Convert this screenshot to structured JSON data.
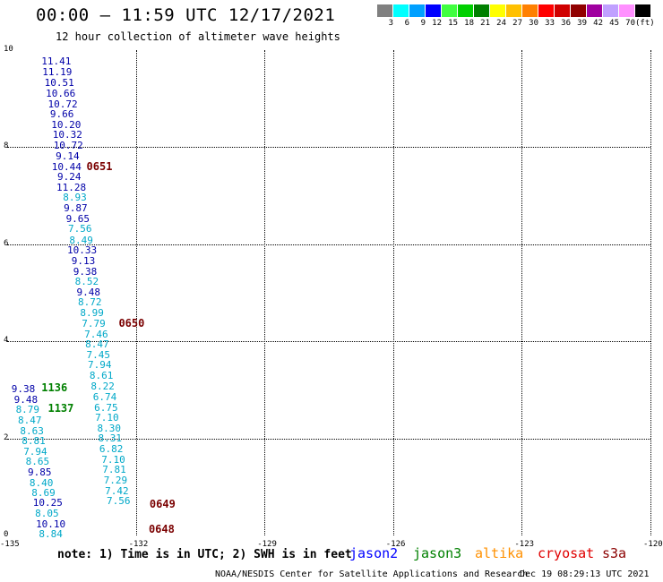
{
  "title": "00:00 – 11:59 UTC 12/17/2021",
  "subtitle": "12 hour collection of altimeter wave heights",
  "scale": {
    "labels": [
      "3",
      "6",
      "9",
      "12",
      "15",
      "18",
      "21",
      "24",
      "27",
      "30",
      "33",
      "36",
      "39",
      "42",
      "45",
      "70",
      "(ft)"
    ],
    "colors": [
      "#808080",
      "#00ffff",
      "#00a0ff",
      "#0000ff",
      "#40ff40",
      "#00d000",
      "#008000",
      "#ffff00",
      "#ffc000",
      "#ff8000",
      "#ff0000",
      "#d00000",
      "#900000",
      "#a000a0",
      "#c0a0ff",
      "#ff90ff",
      "#000000"
    ]
  },
  "axes": {
    "x_ticks": [
      "-135",
      "-132",
      "-129",
      "-126",
      "-123",
      "-120"
    ],
    "y_ticks": [
      "10",
      "8",
      "6",
      "4",
      "2",
      "0"
    ]
  },
  "observations": [
    {
      "v": "11.41",
      "lon": -134.2,
      "lat": 9.75,
      "c": "#0000a8"
    },
    {
      "v": "11.19",
      "lon": -134.18,
      "lat": 9.52,
      "c": "#0000a8"
    },
    {
      "v": "10.51",
      "lon": -134.13,
      "lat": 9.3,
      "c": "#0000a8"
    },
    {
      "v": "10.66",
      "lon": -134.1,
      "lat": 9.08,
      "c": "#0000a8"
    },
    {
      "v": "10.72",
      "lon": -134.05,
      "lat": 8.86,
      "c": "#0000a8"
    },
    {
      "v": "9.66",
      "lon": -134.0,
      "lat": 8.65,
      "c": "#0000a8"
    },
    {
      "v": "10.20",
      "lon": -133.97,
      "lat": 8.43,
      "c": "#0000a8"
    },
    {
      "v": "10.32",
      "lon": -133.94,
      "lat": 8.22,
      "c": "#0000a8"
    },
    {
      "v": "10.72",
      "lon": -133.92,
      "lat": 8.0,
      "c": "#0000a8"
    },
    {
      "v": "9.14",
      "lon": -133.87,
      "lat": 7.78,
      "c": "#0000a8"
    },
    {
      "v": "10.44",
      "lon": -133.96,
      "lat": 7.57,
      "c": "#0000a8"
    },
    {
      "v": "9.24",
      "lon": -133.83,
      "lat": 7.36,
      "c": "#0000a8"
    },
    {
      "v": "11.28",
      "lon": -133.85,
      "lat": 7.14,
      "c": "#0000a8"
    },
    {
      "v": "8.93",
      "lon": -133.7,
      "lat": 6.93,
      "c": "#00a8c8"
    },
    {
      "v": "9.87",
      "lon": -133.68,
      "lat": 6.71,
      "c": "#0000a8"
    },
    {
      "v": "9.65",
      "lon": -133.63,
      "lat": 6.5,
      "c": "#0000a8"
    },
    {
      "v": "7.56",
      "lon": -133.58,
      "lat": 6.29,
      "c": "#00a8c8"
    },
    {
      "v": "8.49",
      "lon": -133.55,
      "lat": 6.06,
      "c": "#00a8c8"
    },
    {
      "v": "10.33",
      "lon": -133.6,
      "lat": 5.85,
      "c": "#0000a8"
    },
    {
      "v": "9.13",
      "lon": -133.5,
      "lat": 5.63,
      "c": "#0000a8"
    },
    {
      "v": "9.38",
      "lon": -133.46,
      "lat": 5.41,
      "c": "#0000a8"
    },
    {
      "v": "8.52",
      "lon": -133.42,
      "lat": 5.2,
      "c": "#00a8c8"
    },
    {
      "v": "9.48",
      "lon": -133.38,
      "lat": 4.98,
      "c": "#0000a8"
    },
    {
      "v": "8.72",
      "lon": -133.35,
      "lat": 4.77,
      "c": "#00a8c8"
    },
    {
      "v": "8.99",
      "lon": -133.3,
      "lat": 4.55,
      "c": "#00a8c8"
    },
    {
      "v": "7.79",
      "lon": -133.26,
      "lat": 4.34,
      "c": "#00a8c8"
    },
    {
      "v": "7.46",
      "lon": -133.2,
      "lat": 4.12,
      "c": "#00a8c8"
    },
    {
      "v": "8.47",
      "lon": -133.18,
      "lat": 3.91,
      "c": "#00a8c8"
    },
    {
      "v": "7.45",
      "lon": -133.15,
      "lat": 3.69,
      "c": "#00a8c8"
    },
    {
      "v": "7.94",
      "lon": -133.12,
      "lat": 3.48,
      "c": "#00a8c8"
    },
    {
      "v": "8.61",
      "lon": -133.08,
      "lat": 3.26,
      "c": "#00a8c8"
    },
    {
      "v": "8.22",
      "lon": -133.05,
      "lat": 3.04,
      "c": "#00a8c8"
    },
    {
      "v": "6.74",
      "lon": -133.0,
      "lat": 2.83,
      "c": "#00a8c8"
    },
    {
      "v": "6.75",
      "lon": -132.97,
      "lat": 2.61,
      "c": "#00a8c8"
    },
    {
      "v": "7.10",
      "lon": -132.95,
      "lat": 2.4,
      "c": "#00a8c8"
    },
    {
      "v": "8.30",
      "lon": -132.9,
      "lat": 2.18,
      "c": "#00a8c8"
    },
    {
      "v": "8.31",
      "lon": -132.88,
      "lat": 1.97,
      "c": "#00a8c8"
    },
    {
      "v": "6.82",
      "lon": -132.85,
      "lat": 1.75,
      "c": "#00a8c8"
    },
    {
      "v": "7.10",
      "lon": -132.8,
      "lat": 1.54,
      "c": "#00a8c8"
    },
    {
      "v": "7.81",
      "lon": -132.78,
      "lat": 1.32,
      "c": "#00a8c8"
    },
    {
      "v": "7.29",
      "lon": -132.75,
      "lat": 1.11,
      "c": "#00a8c8"
    },
    {
      "v": "7.42",
      "lon": -132.72,
      "lat": 0.89,
      "c": "#00a8c8"
    },
    {
      "v": "7.56",
      "lon": -132.68,
      "lat": 0.68,
      "c": "#00a8c8"
    },
    {
      "v": "9.38",
      "lon": -134.9,
      "lat": 2.98,
      "c": "#0000a8"
    },
    {
      "v": "9.48",
      "lon": -134.84,
      "lat": 2.77,
      "c": "#0000a8"
    },
    {
      "v": "8.79",
      "lon": -134.8,
      "lat": 2.56,
      "c": "#00a8c8"
    },
    {
      "v": "8.47",
      "lon": -134.75,
      "lat": 2.35,
      "c": "#00a8c8"
    },
    {
      "v": "8.63",
      "lon": -134.7,
      "lat": 2.13,
      "c": "#00a8c8"
    },
    {
      "v": "8.81",
      "lon": -134.66,
      "lat": 1.92,
      "c": "#00a8c8"
    },
    {
      "v": "7.94",
      "lon": -134.62,
      "lat": 1.7,
      "c": "#00a8c8"
    },
    {
      "v": "8.65",
      "lon": -134.57,
      "lat": 1.49,
      "c": "#00a8c8"
    },
    {
      "v": "9.85",
      "lon": -134.52,
      "lat": 1.28,
      "c": "#0000a8"
    },
    {
      "v": "8.40",
      "lon": -134.48,
      "lat": 1.06,
      "c": "#00a8c8"
    },
    {
      "v": "8.69",
      "lon": -134.43,
      "lat": 0.85,
      "c": "#00a8c8"
    },
    {
      "v": "10.25",
      "lon": -134.4,
      "lat": 0.64,
      "c": "#0000a8"
    },
    {
      "v": "8.05",
      "lon": -134.35,
      "lat": 0.43,
      "c": "#00a8c8"
    },
    {
      "v": "10.10",
      "lon": -134.33,
      "lat": 0.21,
      "c": "#0000a8"
    },
    {
      "v": "8.84",
      "lon": -134.26,
      "lat": 0.0,
      "c": "#00a8c8"
    }
  ],
  "passes": [
    {
      "label": "0651",
      "lon": -133.15,
      "lat": 7.57,
      "c": "#7a0000"
    },
    {
      "label": "0650",
      "lon": -132.4,
      "lat": 4.34,
      "c": "#7a0000"
    },
    {
      "label": "0649",
      "lon": -131.68,
      "lat": 0.6,
      "c": "#7a0000"
    },
    {
      "label": "0648",
      "lon": -131.7,
      "lat": 0.09,
      "c": "#7a0000"
    },
    {
      "label": "1136",
      "lon": -134.2,
      "lat": 3.0,
      "c": "#008000"
    },
    {
      "label": "1137",
      "lon": -134.05,
      "lat": 2.58,
      "c": "#008000"
    }
  ],
  "note": "note:  1) Time is in UTC; 2) SWH is in feet",
  "legend": [
    {
      "name": "jason2",
      "c": "#0000ff"
    },
    {
      "name": "jason3",
      "c": "#008000"
    },
    {
      "name": "altika",
      "c": "#ff9000"
    },
    {
      "name": "cryosat",
      "c": "#e00000"
    },
    {
      "name": "s3a",
      "c": "#8b0000"
    }
  ],
  "footer": {
    "left": "NOAA/NESDIS Center for Satellite Applications and Research",
    "right": "Dec 19 08:29:13 UTC 2021"
  }
}
